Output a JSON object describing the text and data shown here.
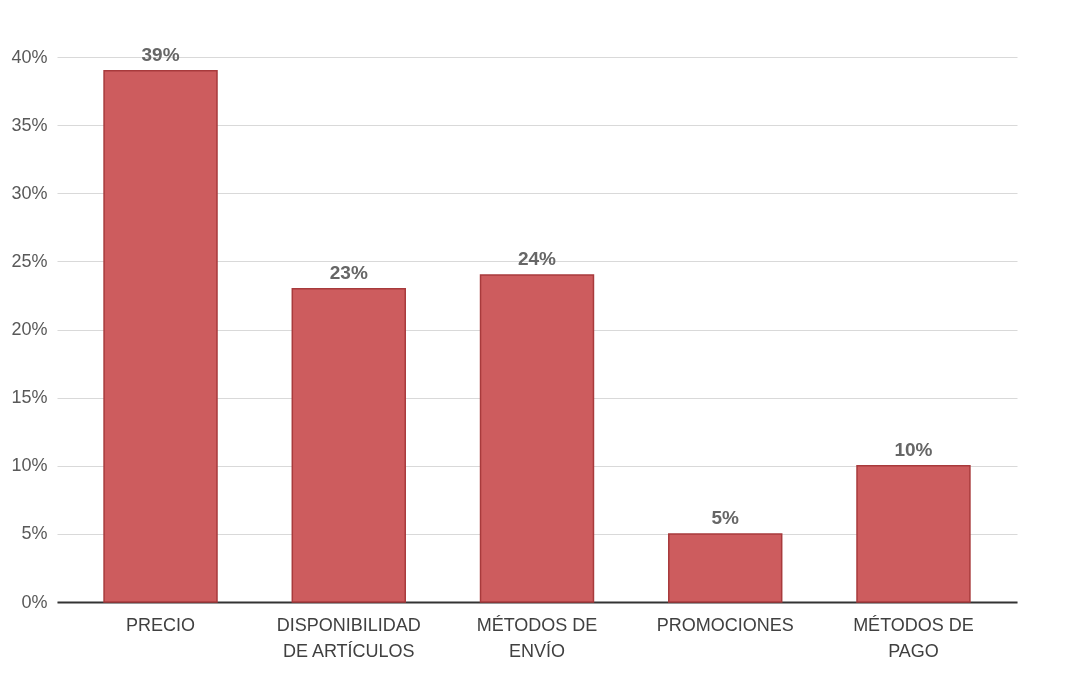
{
  "chart_data": {
    "type": "bar",
    "categories": [
      "PRECIO",
      "DISPONIBILIDAD DE ARTÍCULOS",
      "MÉTODOS DE ENVÍO",
      "PROMOCIONES",
      "MÉTODOS DE PAGO"
    ],
    "values": [
      39,
      23,
      24,
      5,
      10
    ],
    "value_labels": [
      "39%",
      "23%",
      "24%",
      "5%",
      "10%"
    ],
    "color": "#cd5c5e",
    "ylim": [
      0,
      40
    ],
    "yticks": [
      {
        "value": 0,
        "label": "0%"
      },
      {
        "value": 5,
        "label": "5%"
      },
      {
        "value": 10,
        "label": "10%"
      },
      {
        "value": 15,
        "label": "15%"
      },
      {
        "value": 20,
        "label": "20%"
      },
      {
        "value": 25,
        "label": "25%"
      },
      {
        "value": 30,
        "label": "30%"
      },
      {
        "value": 35,
        "label": "35%"
      },
      {
        "value": 40,
        "label": "40%"
      }
    ],
    "grid": "y"
  }
}
